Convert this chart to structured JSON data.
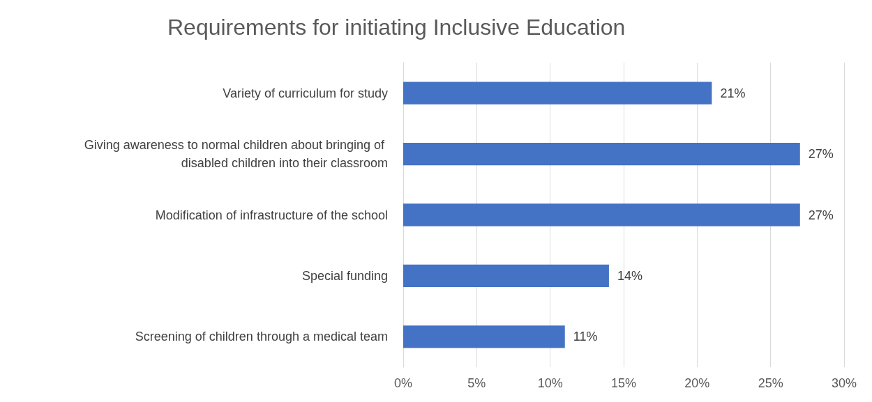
{
  "chart_data": {
    "type": "bar",
    "orientation": "horizontal",
    "title": "Requirements for initiating Inclusive Education",
    "categories": [
      "Variety of curriculum for study",
      "Giving awareness to normal children about bringing of disabled children into their classroom",
      "Modification of infrastructure of the school",
      "Special funding",
      "Screening of children through a medical team"
    ],
    "values": [
      21,
      27,
      27,
      14,
      11
    ],
    "value_labels": [
      "21%",
      "27%",
      "27%",
      "14%",
      "11%"
    ],
    "color": "#4472c4",
    "xlim": [
      0,
      30
    ],
    "xticks": [
      {
        "value": 0,
        "label": "0%"
      },
      {
        "value": 5,
        "label": "5%"
      },
      {
        "value": 10,
        "label": "10%"
      },
      {
        "value": 15,
        "label": "15%"
      },
      {
        "value": 20,
        "label": "20%"
      },
      {
        "value": 25,
        "label": "25%"
      },
      {
        "value": 30,
        "label": "30%"
      }
    ],
    "grid": "x"
  }
}
